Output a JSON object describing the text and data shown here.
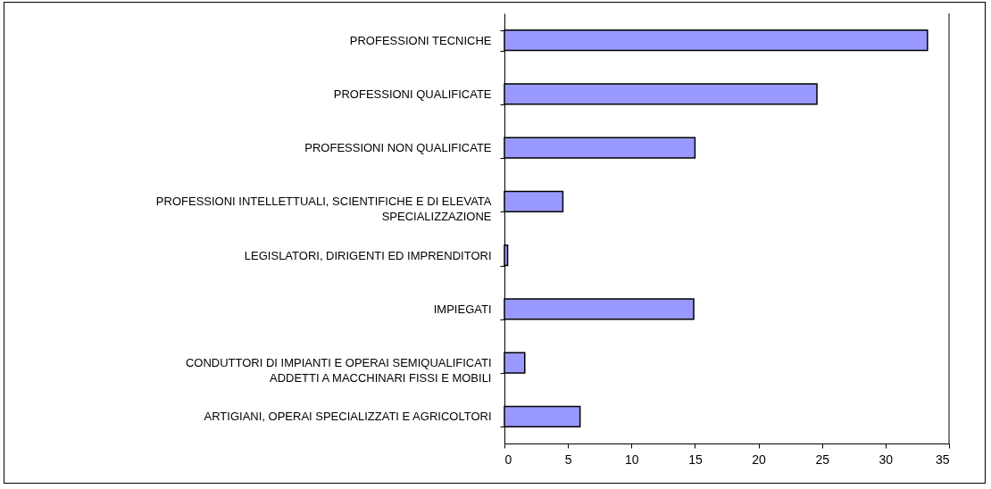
{
  "chart_data": {
    "type": "bar",
    "orientation": "horizontal",
    "categories": [
      "PROFESSIONI TECNICHE",
      "PROFESSIONI QUALIFICATE",
      "PROFESSIONI NON QUALIFICATE",
      "PROFESSIONI INTELLETTUALI, SCIENTIFICHE E DI ELEVATA SPECIALIZZAZIONE",
      "LEGISLATORI, DIRIGENTI ED IMPRENDITORI",
      "IMPIEGATI",
      "CONDUTTORI DI IMPIANTI E OPERAI SEMIQUALIFICATI ADDETTI A MACCHINARI FISSI E MOBILI",
      "ARTIGIANI, OPERAI SPECIALIZZATI E AGRICOLTORI"
    ],
    "values": [
      33.3,
      24.6,
      15.0,
      4.6,
      0.25,
      14.9,
      1.6,
      5.95
    ],
    "color": "#9999ff",
    "xlim": [
      0,
      35
    ],
    "xticks": [
      0,
      5,
      10,
      15,
      20,
      25,
      30,
      35
    ],
    "grid": false
  }
}
